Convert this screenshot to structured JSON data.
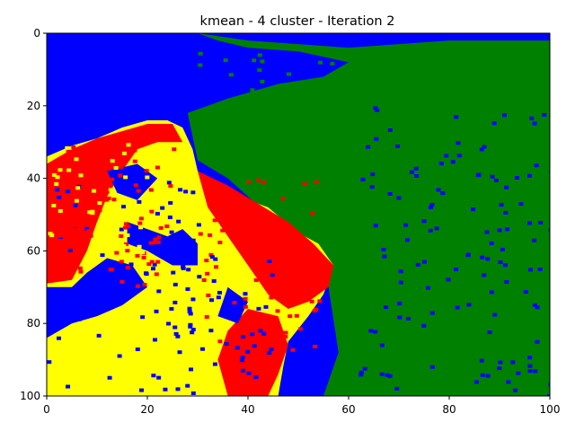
{
  "chart_data": {
    "type": "heatmap",
    "title": "kmean - 4 cluster - Iteration 2",
    "xlabel": "",
    "ylabel": "",
    "xlim": [
      0,
      100
    ],
    "ylim": [
      100,
      0
    ],
    "grid": false,
    "legend": "none",
    "x_ticks": [
      {
        "value": 0,
        "label": "0"
      },
      {
        "value": 20,
        "label": "20"
      },
      {
        "value": 40,
        "label": "40"
      },
      {
        "value": 60,
        "label": "60"
      },
      {
        "value": 80,
        "label": "80"
      },
      {
        "value": 100,
        "label": "100"
      }
    ],
    "y_ticks": [
      {
        "value": 0,
        "label": "0"
      },
      {
        "value": 20,
        "label": "20"
      },
      {
        "value": 40,
        "label": "40"
      },
      {
        "value": 60,
        "label": "60"
      },
      {
        "value": 80,
        "label": "80"
      },
      {
        "value": 100,
        "label": "100"
      }
    ],
    "clusters": [
      {
        "id": 0,
        "color": "#0000ff"
      },
      {
        "id": 1,
        "color": "#008000"
      },
      {
        "id": 2,
        "color": "#ff0000"
      },
      {
        "id": 3,
        "color": "#ffff00"
      }
    ],
    "regions": [
      {
        "cluster": 0,
        "polygon": [
          [
            0,
            0
          ],
          [
            100,
            0
          ],
          [
            100,
            100
          ],
          [
            0,
            100
          ]
        ]
      },
      {
        "cluster": 1,
        "polygon": [
          [
            30,
            0
          ],
          [
            100,
            0
          ],
          [
            100,
            100
          ],
          [
            62,
            100
          ],
          [
            60,
            88
          ],
          [
            70,
            80
          ],
          [
            80,
            70
          ],
          [
            90,
            62
          ],
          [
            99,
            55
          ],
          [
            99,
            62
          ],
          [
            88,
            72
          ],
          [
            78,
            80
          ],
          [
            65,
            88
          ],
          [
            62,
            100
          ],
          [
            55,
            100
          ],
          [
            58,
            88
          ],
          [
            56,
            70
          ],
          [
            52,
            60
          ],
          [
            44,
            50
          ],
          [
            36,
            40
          ],
          [
            30,
            35
          ],
          [
            28,
            22
          ],
          [
            36,
            18
          ],
          [
            46,
            14
          ],
          [
            55,
            12
          ],
          [
            60,
            8
          ],
          [
            50,
            5
          ],
          [
            40,
            4
          ],
          [
            34,
            2
          ]
        ]
      },
      {
        "cluster": 1,
        "polygon": [
          [
            60,
            100
          ],
          [
            65,
            88
          ],
          [
            75,
            82
          ],
          [
            85,
            78
          ],
          [
            95,
            74
          ],
          [
            100,
            70
          ],
          [
            100,
            100
          ]
        ]
      },
      {
        "cluster": 3,
        "polygon": [
          [
            0,
            34
          ],
          [
            5,
            31
          ],
          [
            10,
            29
          ],
          [
            15,
            26
          ],
          [
            20,
            24
          ],
          [
            24,
            24
          ],
          [
            27,
            26
          ],
          [
            29,
            32
          ],
          [
            30,
            38
          ],
          [
            34,
            42
          ],
          [
            38,
            45
          ],
          [
            44,
            48
          ],
          [
            50,
            55
          ],
          [
            54,
            58
          ],
          [
            57,
            64
          ],
          [
            55,
            72
          ],
          [
            52,
            78
          ],
          [
            48,
            85
          ],
          [
            47,
            92
          ],
          [
            46,
            100
          ],
          [
            0,
            100
          ]
        ]
      },
      {
        "cluster": 2,
        "polygon": [
          [
            0,
            36
          ],
          [
            5,
            32
          ],
          [
            10,
            29
          ],
          [
            15,
            27
          ],
          [
            20,
            25
          ],
          [
            25,
            25
          ],
          [
            27,
            30
          ],
          [
            22,
            30
          ],
          [
            18,
            32
          ],
          [
            15,
            38
          ],
          [
            12,
            45
          ],
          [
            10,
            52
          ],
          [
            8,
            60
          ],
          [
            5,
            68
          ],
          [
            0,
            69
          ]
        ]
      },
      {
        "cluster": 2,
        "polygon": [
          [
            30,
            38
          ],
          [
            36,
            42
          ],
          [
            42,
            47
          ],
          [
            48,
            52
          ],
          [
            53,
            58
          ],
          [
            57,
            64
          ],
          [
            56,
            70
          ],
          [
            52,
            74
          ],
          [
            48,
            76
          ],
          [
            44,
            72
          ],
          [
            40,
            64
          ],
          [
            36,
            56
          ],
          [
            32,
            48
          ]
        ]
      },
      {
        "cluster": 2,
        "polygon": [
          [
            40,
            76
          ],
          [
            46,
            78
          ],
          [
            48,
            86
          ],
          [
            46,
            94
          ],
          [
            44,
            100
          ],
          [
            36,
            100
          ],
          [
            34,
            90
          ],
          [
            36,
            82
          ]
        ]
      },
      {
        "cluster": 0,
        "polygon": [
          [
            0,
            70
          ],
          [
            5,
            70
          ],
          [
            8,
            66
          ],
          [
            12,
            62
          ],
          [
            17,
            64
          ],
          [
            20,
            70
          ],
          [
            15,
            75
          ],
          [
            10,
            78
          ],
          [
            5,
            80
          ],
          [
            0,
            84
          ]
        ]
      },
      {
        "cluster": 0,
        "polygon": [
          [
            16,
            52
          ],
          [
            20,
            54
          ],
          [
            24,
            56
          ],
          [
            27,
            54
          ],
          [
            30,
            58
          ],
          [
            30,
            64
          ],
          [
            25,
            64
          ],
          [
            20,
            60
          ],
          [
            16,
            58
          ]
        ]
      },
      {
        "cluster": 0,
        "polygon": [
          [
            12,
            38
          ],
          [
            18,
            36
          ],
          [
            22,
            40
          ],
          [
            18,
            46
          ],
          [
            14,
            44
          ]
        ]
      },
      {
        "cluster": 0,
        "polygon": [
          [
            36,
            70
          ],
          [
            40,
            74
          ],
          [
            38,
            80
          ],
          [
            34,
            78
          ]
        ]
      },
      {
        "cluster": 0,
        "polygon": [
          [
            0,
            0
          ],
          [
            100,
            0
          ],
          [
            100,
            2
          ],
          [
            80,
            2
          ],
          [
            60,
            4
          ],
          [
            40,
            2
          ],
          [
            30,
            0
          ]
        ]
      }
    ]
  }
}
